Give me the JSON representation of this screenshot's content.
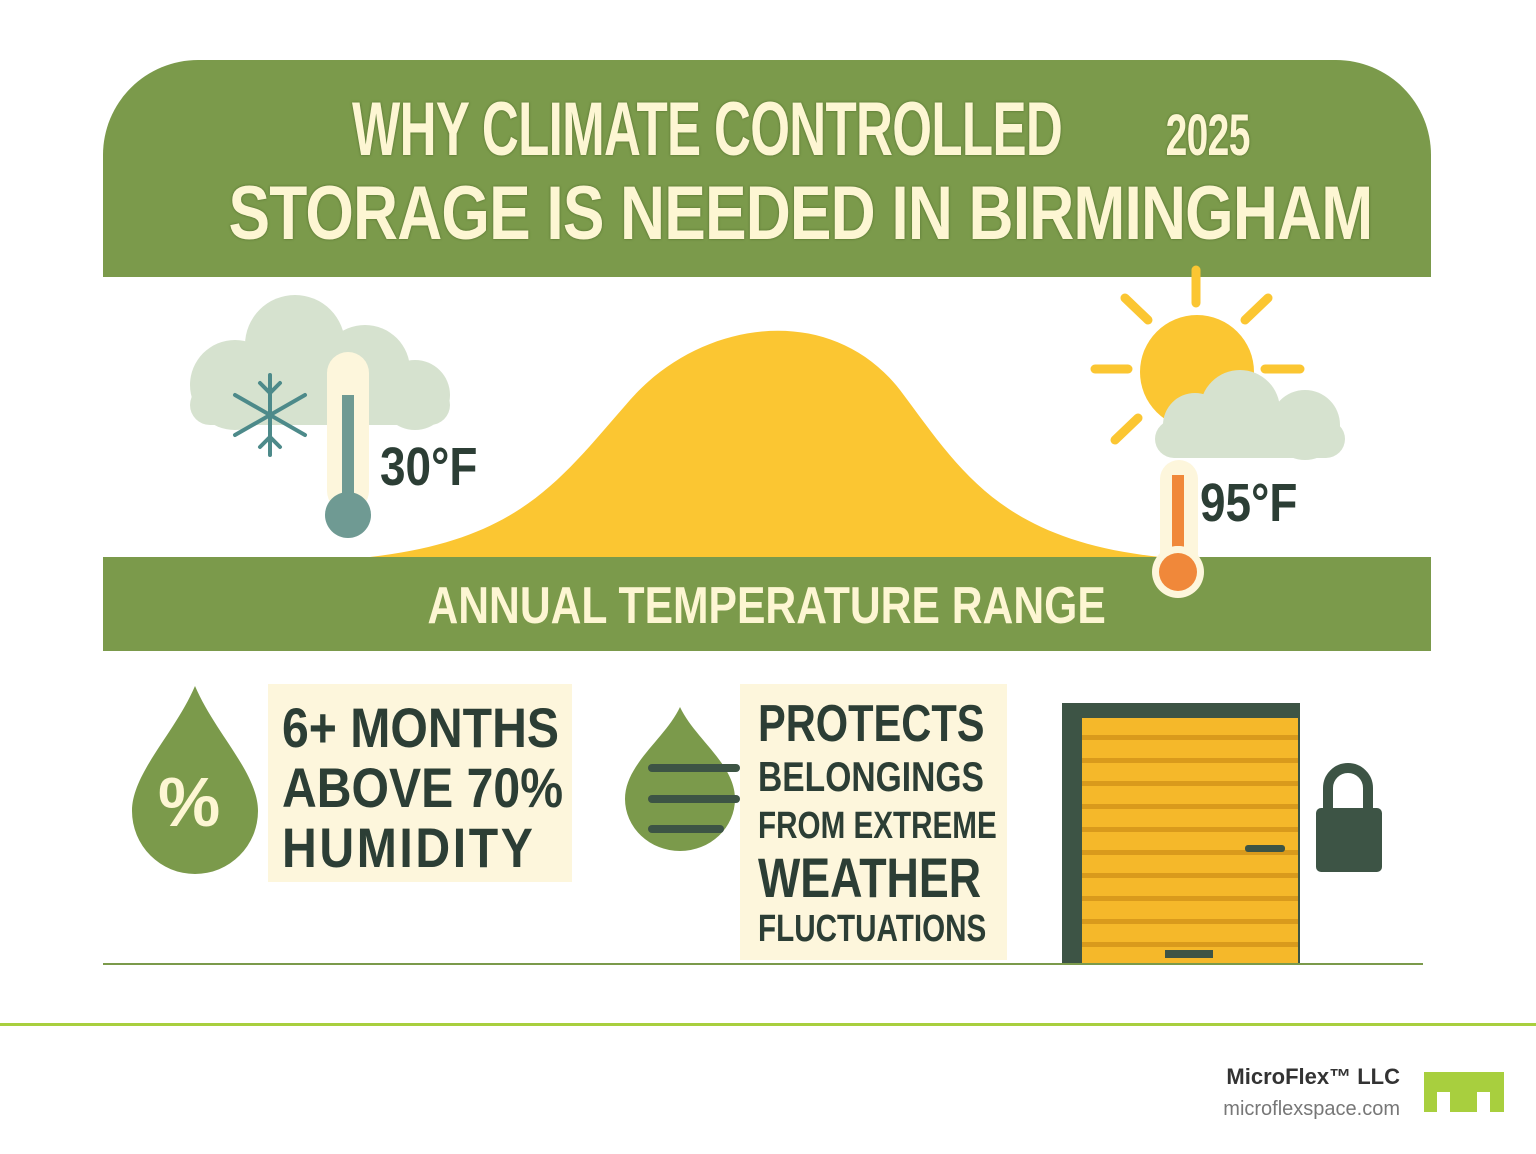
{
  "header": {
    "title_line1": "WHY CLIMATE CONTROLLED",
    "year": "2025",
    "title_line2": "STORAGE IS NEEDED IN BIRMINGHAM"
  },
  "temperature": {
    "low": "30°F",
    "high": "95°F",
    "band_label": "ANNUAL TEMPERATURE RANGE",
    "low_icon": "snowflake-cloud-icon",
    "high_icon": "sun-cloud-icon"
  },
  "facts": [
    {
      "lines": [
        "6+ MONTHS",
        "ABOVE 70%",
        "HUMIDITY"
      ],
      "icon": "humidity-drop-icon",
      "icon_text": "%"
    },
    {
      "lines": [
        "PROTECTS",
        "BELONGINGS",
        "FROM EXTREME",
        "WEATHER",
        "FLUCTUATIONS"
      ],
      "icon": "water-drop-icon"
    }
  ],
  "footer": {
    "company": "MicroFlex™ LLC",
    "website": "microflexspace.com"
  },
  "colors": {
    "green": "#7b9a4b",
    "cream": "#fdf6d3",
    "yellow": "#fbc632",
    "orange": "#f0883a",
    "dark": "#2c3e35",
    "lime": "#a8cf3e"
  }
}
